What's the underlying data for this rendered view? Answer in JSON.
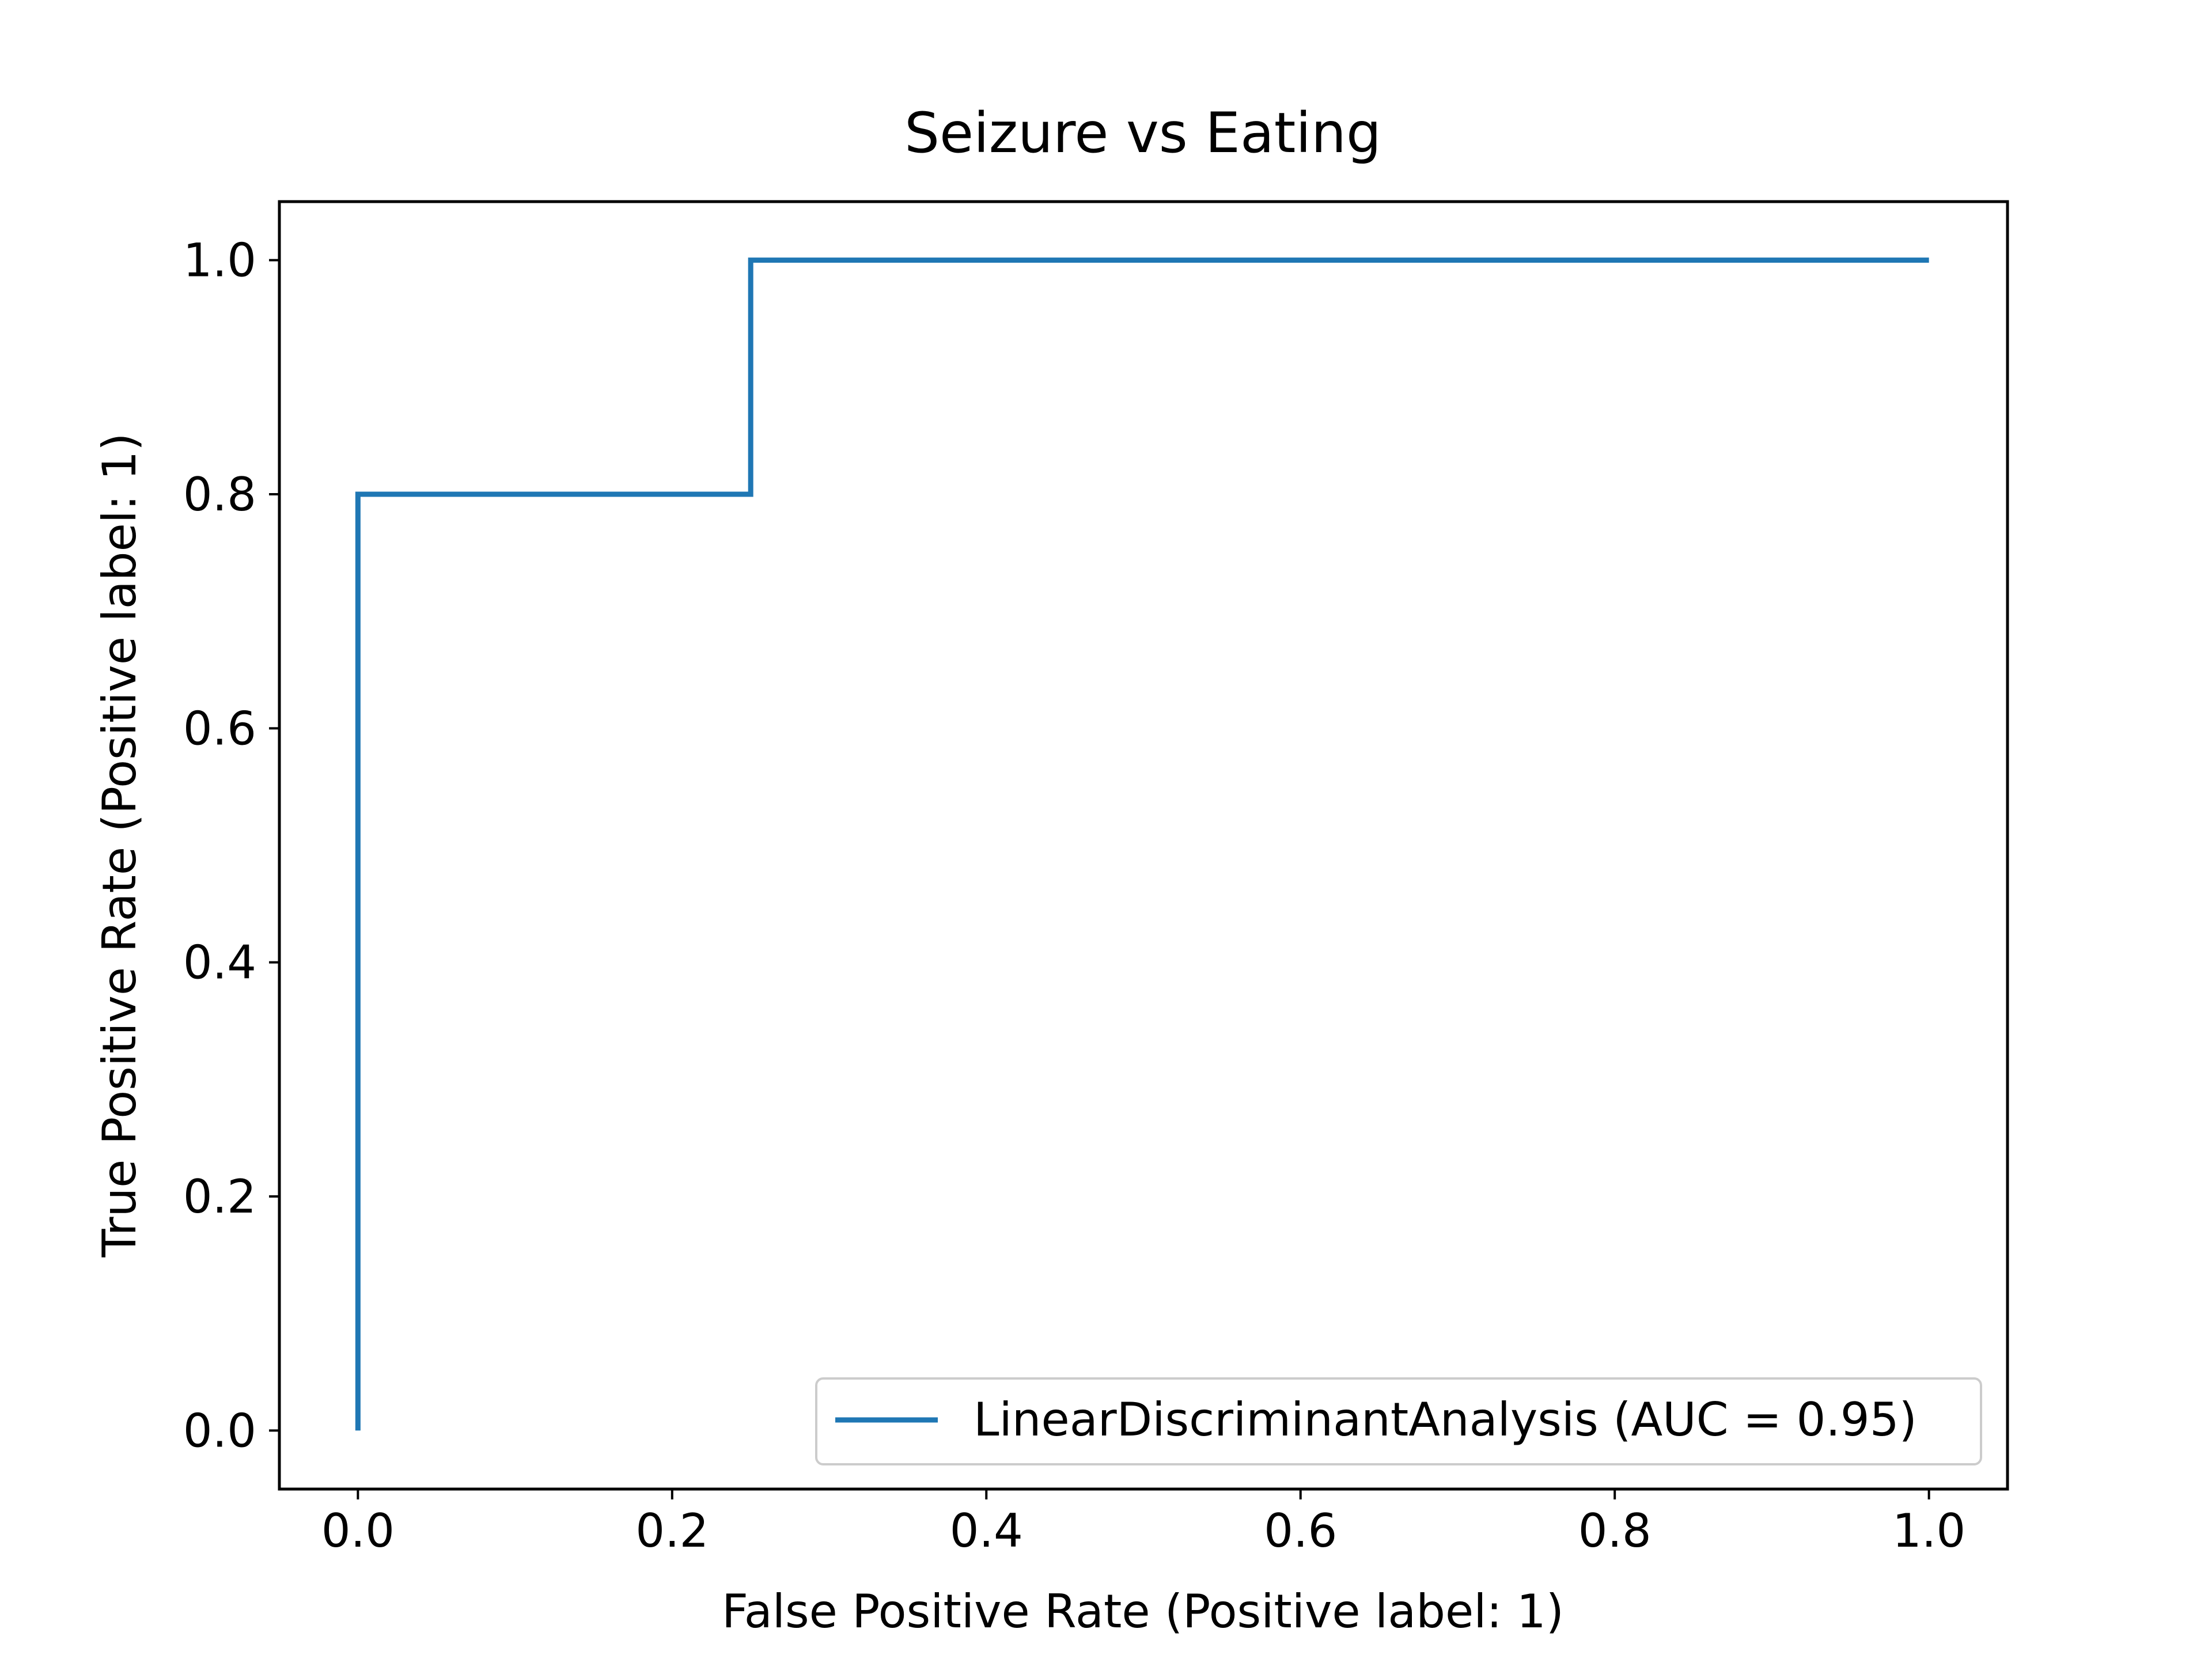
{
  "chart_data": {
    "type": "line",
    "title": "Seizure vs Eating",
    "xlabel": "False Positive Rate (Positive label: 1)",
    "ylabel": "True Positive Rate (Positive label: 1)",
    "xlim": [
      -0.05,
      1.05
    ],
    "ylim": [
      -0.05,
      1.05
    ],
    "xticks": [
      "0.0",
      "0.2",
      "0.4",
      "0.6",
      "0.8",
      "1.0"
    ],
    "yticks": [
      "0.0",
      "0.2",
      "0.4",
      "0.6",
      "0.8",
      "1.0"
    ],
    "grid": false,
    "legend_position": "lower-right",
    "series": [
      {
        "name": "LinearDiscriminantAnalysis (AUC = 0.95)",
        "color": "#1f77b4",
        "x": [
          0.0,
          0.0,
          0.25,
          0.25,
          1.0
        ],
        "y": [
          0.0,
          0.8,
          0.8,
          1.0,
          1.0
        ]
      }
    ]
  }
}
